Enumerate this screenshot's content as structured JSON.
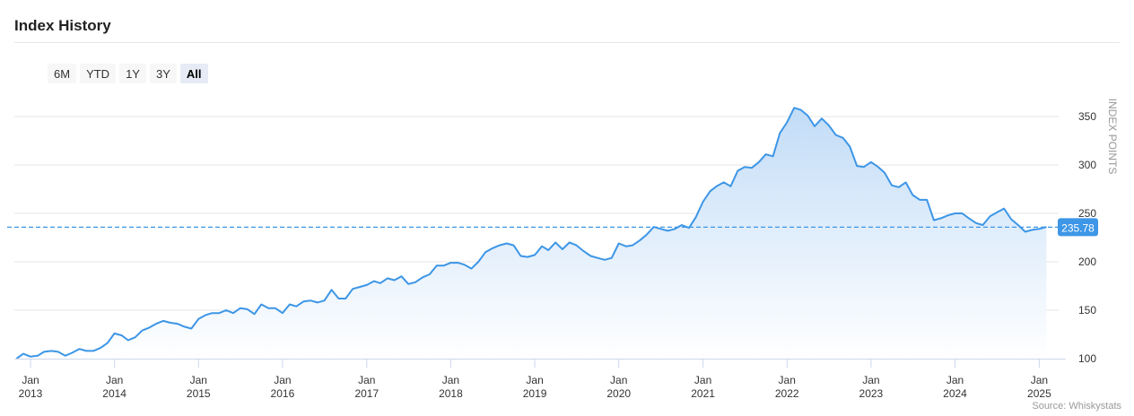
{
  "header": {
    "title": "Index History"
  },
  "range_selector": {
    "buttons": [
      {
        "label": "6M",
        "active": false
      },
      {
        "label": "YTD",
        "active": false
      },
      {
        "label": "1Y",
        "active": false
      },
      {
        "label": "3Y",
        "active": false
      },
      {
        "label": "All",
        "active": true
      }
    ]
  },
  "credits": "Source: Whiskystats",
  "colors": {
    "line": "#3d96e6",
    "fill_top": "#c2dcf7",
    "fill_bottom": "#ffffff",
    "current_label_bg": "#3d96e6"
  },
  "chart_data": {
    "type": "area",
    "title": "",
    "xlabel": "",
    "ylabel": "INDEX POINTS",
    "ylim": [
      100,
      370
    ],
    "yticks": [
      100,
      150,
      200,
      250,
      300,
      350
    ],
    "xticks": [
      {
        "date": "2013-01-01",
        "label": [
          "Jan",
          "2013"
        ]
      },
      {
        "date": "2014-01-01",
        "label": [
          "Jan",
          "2014"
        ]
      },
      {
        "date": "2015-01-01",
        "label": [
          "Jan",
          "2015"
        ]
      },
      {
        "date": "2016-01-01",
        "label": [
          "Jan",
          "2016"
        ]
      },
      {
        "date": "2017-01-01",
        "label": [
          "Jan",
          "2017"
        ]
      },
      {
        "date": "2018-01-01",
        "label": [
          "Jan",
          "2018"
        ]
      },
      {
        "date": "2019-01-01",
        "label": [
          "Jan",
          "2019"
        ]
      },
      {
        "date": "2020-01-01",
        "label": [
          "Jan",
          "2020"
        ]
      },
      {
        "date": "2021-01-01",
        "label": [
          "Jan",
          "2021"
        ]
      },
      {
        "date": "2022-01-01",
        "label": [
          "Jan",
          "2022"
        ]
      },
      {
        "date": "2023-01-01",
        "label": [
          "Jan",
          "2023"
        ]
      },
      {
        "date": "2024-01-01",
        "label": [
          "Jan",
          "2024"
        ]
      },
      {
        "date": "2025-01-01",
        "label": [
          "Jan",
          "2025"
        ]
      }
    ],
    "current_value": 235.78,
    "current_value_label": "235.78",
    "grid": true,
    "series": [
      {
        "points": [
          [
            "2012-11",
            100
          ],
          [
            "2012-12",
            105
          ],
          [
            "2013-01",
            102
          ],
          [
            "2013-02",
            103
          ],
          [
            "2013-03",
            107
          ],
          [
            "2013-04",
            108
          ],
          [
            "2013-05",
            107
          ],
          [
            "2013-06",
            103
          ],
          [
            "2013-07",
            106
          ],
          [
            "2013-08",
            110
          ],
          [
            "2013-09",
            108
          ],
          [
            "2013-10",
            108
          ],
          [
            "2013-11",
            111
          ],
          [
            "2013-12",
            116
          ],
          [
            "2014-01",
            126
          ],
          [
            "2014-02",
            124
          ],
          [
            "2014-03",
            119
          ],
          [
            "2014-04",
            122
          ],
          [
            "2014-05",
            129
          ],
          [
            "2014-06",
            132
          ],
          [
            "2014-07",
            136
          ],
          [
            "2014-08",
            139
          ],
          [
            "2014-09",
            137
          ],
          [
            "2014-10",
            136
          ],
          [
            "2014-11",
            133
          ],
          [
            "2014-12",
            131
          ],
          [
            "2015-01",
            141
          ],
          [
            "2015-02",
            145
          ],
          [
            "2015-03",
            147
          ],
          [
            "2015-04",
            147
          ],
          [
            "2015-05",
            150
          ],
          [
            "2015-06",
            147
          ],
          [
            "2015-07",
            152
          ],
          [
            "2015-08",
            151
          ],
          [
            "2015-09",
            146
          ],
          [
            "2015-10",
            156
          ],
          [
            "2015-11",
            152
          ],
          [
            "2015-12",
            152
          ],
          [
            "2016-01",
            147
          ],
          [
            "2016-02",
            156
          ],
          [
            "2016-03",
            154
          ],
          [
            "2016-04",
            159
          ],
          [
            "2016-05",
            160
          ],
          [
            "2016-06",
            158
          ],
          [
            "2016-07",
            160
          ],
          [
            "2016-08",
            171
          ],
          [
            "2016-09",
            162
          ],
          [
            "2016-10",
            162
          ],
          [
            "2016-11",
            172
          ],
          [
            "2016-12",
            174
          ],
          [
            "2017-01",
            176
          ],
          [
            "2017-02",
            180
          ],
          [
            "2017-03",
            178
          ],
          [
            "2017-04",
            183
          ],
          [
            "2017-05",
            181
          ],
          [
            "2017-06",
            185
          ],
          [
            "2017-07",
            177
          ],
          [
            "2017-08",
            179
          ],
          [
            "2017-09",
            184
          ],
          [
            "2017-10",
            187
          ],
          [
            "2017-11",
            196
          ],
          [
            "2017-12",
            196
          ],
          [
            "2018-01",
            199
          ],
          [
            "2018-02",
            199
          ],
          [
            "2018-03",
            197
          ],
          [
            "2018-04",
            193
          ],
          [
            "2018-05",
            200
          ],
          [
            "2018-06",
            210
          ],
          [
            "2018-07",
            214
          ],
          [
            "2018-08",
            217
          ],
          [
            "2018-09",
            219
          ],
          [
            "2018-10",
            217
          ],
          [
            "2018-11",
            206
          ],
          [
            "2018-12",
            205
          ],
          [
            "2019-01",
            207
          ],
          [
            "2019-02",
            216
          ],
          [
            "2019-03",
            212
          ],
          [
            "2019-04",
            220
          ],
          [
            "2019-05",
            213
          ],
          [
            "2019-06",
            220
          ],
          [
            "2019-07",
            217
          ],
          [
            "2019-08",
            211
          ],
          [
            "2019-09",
            206
          ],
          [
            "2019-10",
            204
          ],
          [
            "2019-11",
            202
          ],
          [
            "2019-12",
            204
          ],
          [
            "2020-01",
            219
          ],
          [
            "2020-02",
            216
          ],
          [
            "2020-03",
            217
          ],
          [
            "2020-04",
            222
          ],
          [
            "2020-05",
            228
          ],
          [
            "2020-06",
            236
          ],
          [
            "2020-07",
            234
          ],
          [
            "2020-08",
            232
          ],
          [
            "2020-09",
            234
          ],
          [
            "2020-10",
            238
          ],
          [
            "2020-11",
            235
          ],
          [
            "2020-12",
            246
          ],
          [
            "2021-01",
            262
          ],
          [
            "2021-02",
            273
          ],
          [
            "2021-03",
            278
          ],
          [
            "2021-04",
            282
          ],
          [
            "2021-05",
            278
          ],
          [
            "2021-06",
            294
          ],
          [
            "2021-07",
            298
          ],
          [
            "2021-08",
            297
          ],
          [
            "2021-09",
            303
          ],
          [
            "2021-10",
            311
          ],
          [
            "2021-11",
            309
          ],
          [
            "2021-12",
            333
          ],
          [
            "2022-01",
            344
          ],
          [
            "2022-02",
            359
          ],
          [
            "2022-03",
            357
          ],
          [
            "2022-04",
            351
          ],
          [
            "2022-05",
            340
          ],
          [
            "2022-06",
            348
          ],
          [
            "2022-07",
            341
          ],
          [
            "2022-08",
            331
          ],
          [
            "2022-09",
            328
          ],
          [
            "2022-10",
            319
          ],
          [
            "2022-11",
            299
          ],
          [
            "2022-12",
            298
          ],
          [
            "2023-01",
            303
          ],
          [
            "2023-02",
            298
          ],
          [
            "2023-03",
            292
          ],
          [
            "2023-04",
            279
          ],
          [
            "2023-05",
            277
          ],
          [
            "2023-06",
            282
          ],
          [
            "2023-07",
            269
          ],
          [
            "2023-08",
            264
          ],
          [
            "2023-09",
            264
          ],
          [
            "2023-10",
            243
          ],
          [
            "2023-11",
            245
          ],
          [
            "2023-12",
            248
          ],
          [
            "2024-01",
            250
          ],
          [
            "2024-02",
            250
          ],
          [
            "2024-03",
            245
          ],
          [
            "2024-04",
            240
          ],
          [
            "2024-05",
            238
          ],
          [
            "2024-06",
            247
          ],
          [
            "2024-07",
            251
          ],
          [
            "2024-08",
            255
          ],
          [
            "2024-09",
            244
          ],
          [
            "2024-10",
            238
          ],
          [
            "2024-11",
            231
          ],
          [
            "2024-12",
            233
          ],
          [
            "2025-01",
            234
          ],
          [
            "2025-02",
            236
          ]
        ]
      }
    ]
  }
}
